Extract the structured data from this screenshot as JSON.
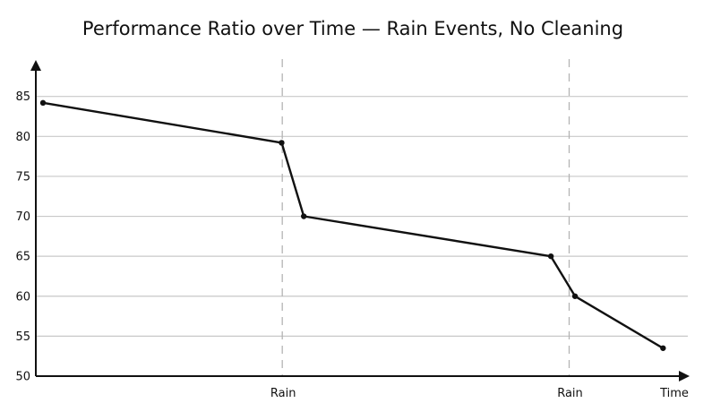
{
  "chart_data": {
    "type": "line",
    "title": "Performance Ratio over Time — Rain Events, No Cleaning",
    "xlabel": "Time",
    "ylabel": "",
    "ylim": [
      50,
      89
    ],
    "y_ticks": [
      50,
      55,
      60,
      65,
      70,
      75,
      80,
      85
    ],
    "grid": true,
    "x_range": [
      0,
      1
    ],
    "event_markers": [
      {
        "label": "Rain",
        "x": 0.378
      },
      {
        "label": "Rain",
        "x": 0.818
      }
    ],
    "series": [
      {
        "x": [
          0.011,
          0.377,
          0.411,
          0.79,
          0.827,
          0.962
        ],
        "y": [
          84.2,
          79.2,
          70.0,
          65.0,
          60.0,
          53.5
        ]
      }
    ],
    "colors": {
      "line": "#111111",
      "grid": "#c8c8c8",
      "event_line": "#b4b4b4",
      "axis": "#111111"
    }
  }
}
